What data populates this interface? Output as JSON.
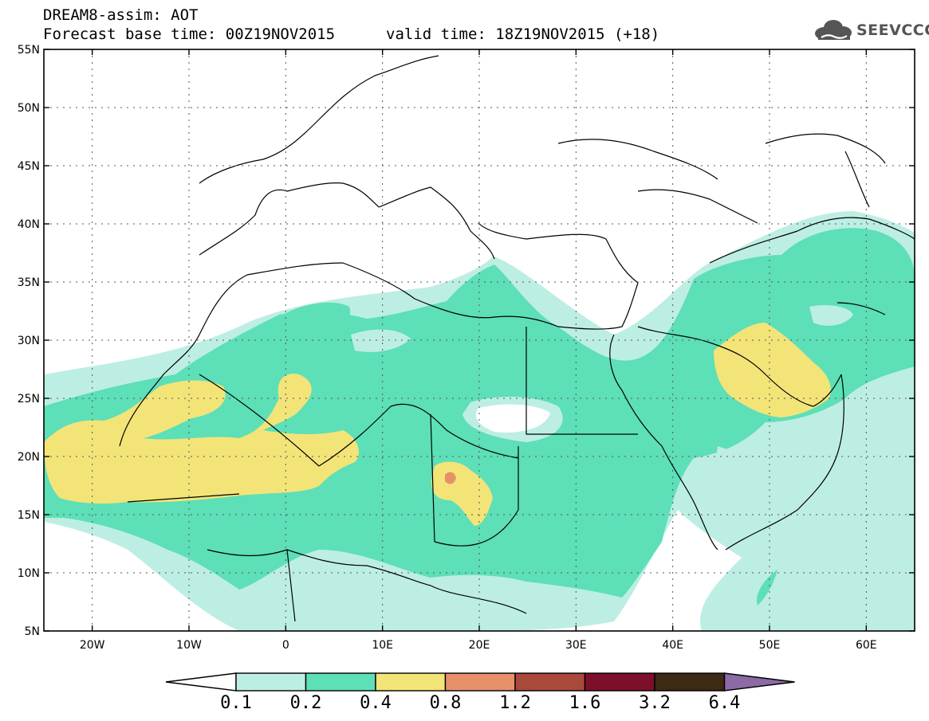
{
  "header": {
    "title": "DREAM8-assim: AOT",
    "base_time": "Forecast base time: 00Z19NOV2015",
    "valid_time": "valid time: 18Z19NOV2015 (+18)"
  },
  "logo": {
    "text": "SEEVCCC",
    "icon": "cloud-icon"
  },
  "map": {
    "lat_labels": [
      "55N",
      "50N",
      "45N",
      "40N",
      "35N",
      "30N",
      "25N",
      "20N",
      "15N",
      "10N",
      "5N"
    ],
    "lon_labels": [
      "20W",
      "10W",
      "0",
      "10E",
      "20E",
      "30E",
      "40E",
      "50E",
      "60E"
    ],
    "lat_range": [
      5,
      55
    ],
    "lon_range": [
      -25,
      65
    ]
  },
  "colorbar": {
    "labels": [
      "0.1",
      "0.2",
      "0.4",
      "0.8",
      "1.2",
      "1.6",
      "3.2",
      "6.4"
    ],
    "colors": [
      "#ffffff",
      "#bdeee3",
      "#5ddfb8",
      "#f3e478",
      "#e8906a",
      "#a9493c",
      "#7e0f2b",
      "#3c2a15",
      "#8c6aa4"
    ]
  }
}
